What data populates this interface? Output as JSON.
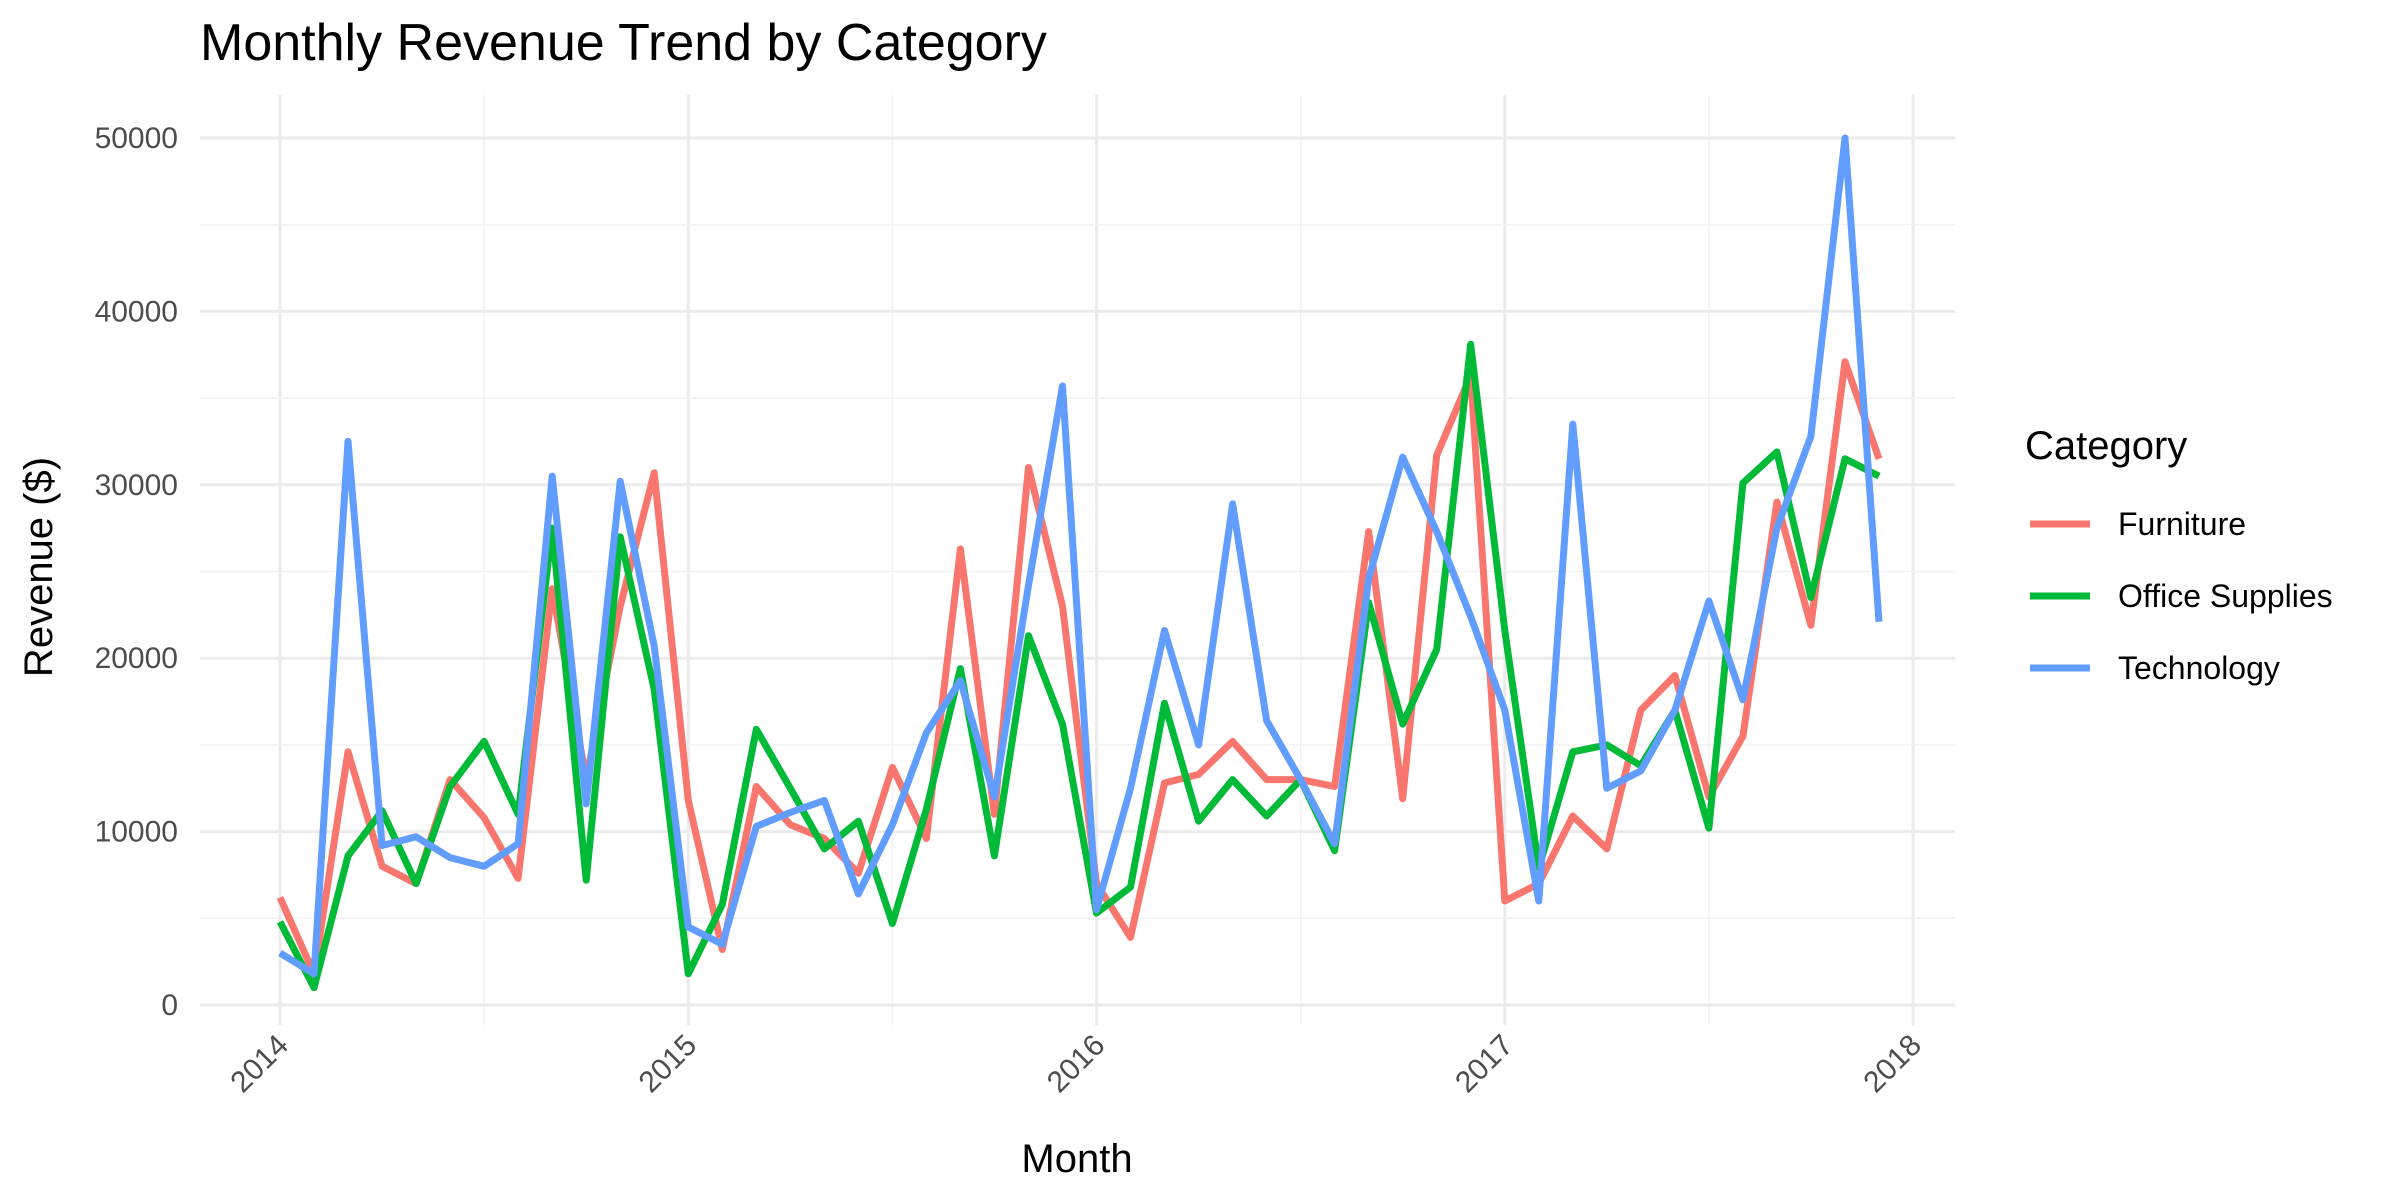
{
  "chart_data": {
    "type": "line",
    "title": "Monthly Revenue Trend by Category",
    "xlabel": "Month",
    "ylabel": "Revenue ($)",
    "x_ticks": [
      "2014",
      "2015",
      "2016",
      "2017",
      "2018"
    ],
    "y_ticks": [
      "0",
      "10000",
      "20000",
      "30000",
      "40000",
      "50000"
    ],
    "ylim": [
      0,
      52000
    ],
    "xlim": [
      "2013-12",
      "2018-01"
    ],
    "grid": true,
    "legend": {
      "title": "Category",
      "position": "right"
    },
    "x": [
      "2014-01",
      "2014-02",
      "2014-03",
      "2014-04",
      "2014-05",
      "2014-06",
      "2014-07",
      "2014-08",
      "2014-09",
      "2014-10",
      "2014-11",
      "2014-12",
      "2015-01",
      "2015-02",
      "2015-03",
      "2015-04",
      "2015-05",
      "2015-06",
      "2015-07",
      "2015-08",
      "2015-09",
      "2015-10",
      "2015-11",
      "2015-12",
      "2016-01",
      "2016-02",
      "2016-03",
      "2016-04",
      "2016-05",
      "2016-06",
      "2016-07",
      "2016-08",
      "2016-09",
      "2016-10",
      "2016-11",
      "2016-12",
      "2017-01",
      "2017-02",
      "2017-03",
      "2017-04",
      "2017-05",
      "2017-06",
      "2017-07",
      "2017-08",
      "2017-09",
      "2017-10",
      "2017-11",
      "2017-12"
    ],
    "series": [
      {
        "name": "Furniture",
        "color": "#F8766D",
        "values": [
          6200,
          1800,
          14600,
          8000,
          7000,
          13000,
          10800,
          7300,
          24000,
          13000,
          23000,
          30700,
          11800,
          3200,
          12600,
          10400,
          9600,
          7600,
          13700,
          9600,
          26300,
          11000,
          31000,
          23000,
          7000,
          3900,
          12800,
          13300,
          15200,
          13000,
          13000,
          12600,
          27300,
          11900,
          31700,
          36300,
          6000,
          7000,
          10900,
          9000,
          17000,
          19000,
          12000,
          15500,
          29000,
          21900,
          37100,
          31500
        ]
      },
      {
        "name": "Office Supplies",
        "color": "#00BA38",
        "values": [
          4800,
          1000,
          8600,
          11200,
          7000,
          12600,
          15200,
          11000,
          27500,
          7200,
          27000,
          18200,
          1800,
          5800,
          15900,
          12500,
          9000,
          10600,
          4700,
          11300,
          19400,
          8600,
          21300,
          16200,
          5300,
          6800,
          17400,
          10600,
          13000,
          10900,
          13000,
          8900,
          23200,
          16200,
          20500,
          38100,
          21600,
          7900,
          14600,
          15000,
          13800,
          17000,
          10200,
          30100,
          31900,
          23500,
          31500,
          30500
        ]
      },
      {
        "name": "Technology",
        "color": "#619CFF",
        "values": [
          3000,
          1800,
          32500,
          9200,
          9700,
          8500,
          8000,
          9300,
          30500,
          11600,
          30200,
          20700,
          4500,
          3500,
          10300,
          11100,
          11800,
          6400,
          10400,
          15700,
          18700,
          12000,
          24200,
          35700,
          5500,
          12500,
          21600,
          15000,
          28900,
          16400,
          13000,
          9300,
          24600,
          31600,
          27300,
          22400,
          17000,
          6000,
          33500,
          12500,
          13500,
          17000,
          23300,
          17600,
          27500,
          32800,
          50000,
          22100
        ]
      }
    ]
  }
}
